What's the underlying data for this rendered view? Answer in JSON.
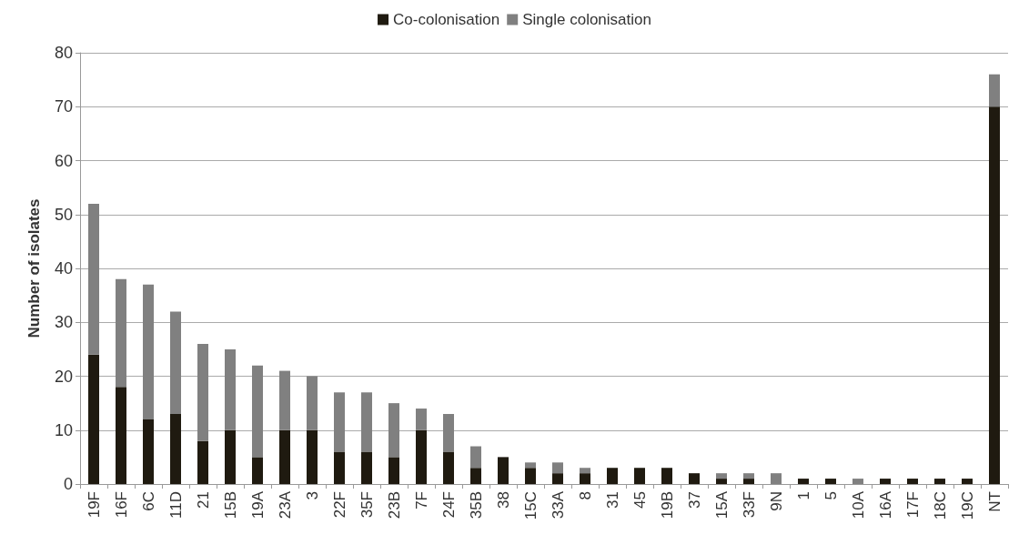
{
  "chart_data": {
    "type": "bar",
    "stacked": true,
    "ylabel": "Number of isolates",
    "categories": [
      "19F",
      "16F",
      "6C",
      "11D",
      "21",
      "15B",
      "19A",
      "23A",
      "3",
      "22F",
      "35F",
      "23B",
      "7F",
      "24F",
      "35B",
      "38",
      "15C",
      "33A",
      "8",
      "31",
      "45",
      "19B",
      "37",
      "15A",
      "33F",
      "9N",
      "1",
      "5",
      "10A",
      "16A",
      "17F",
      "18C",
      "19C",
      "NT"
    ],
    "series": [
      {
        "name": "Co-colonisation",
        "color": "#1f1a10",
        "values": [
          24,
          18,
          12,
          13,
          8,
          10,
          5,
          10,
          10,
          6,
          6,
          5,
          10,
          6,
          3,
          5,
          3,
          2,
          2,
          3,
          3,
          3,
          2,
          1,
          1,
          0,
          1,
          1,
          0,
          1,
          1,
          1,
          1,
          70
        ]
      },
      {
        "name": "Single colonisation",
        "color": "#808080",
        "values": [
          28,
          20,
          25,
          19,
          18,
          15,
          17,
          11,
          10,
          11,
          11,
          10,
          4,
          7,
          4,
          0,
          1,
          2,
          1,
          0,
          0,
          0,
          0,
          1,
          1,
          2,
          0,
          0,
          1,
          0,
          0,
          0,
          0,
          6
        ]
      }
    ],
    "ylim": [
      0,
      80
    ],
    "yticks": [
      0,
      10,
      20,
      30,
      40,
      50,
      60,
      70,
      80
    ],
    "grid": "y",
    "legend": "top"
  }
}
